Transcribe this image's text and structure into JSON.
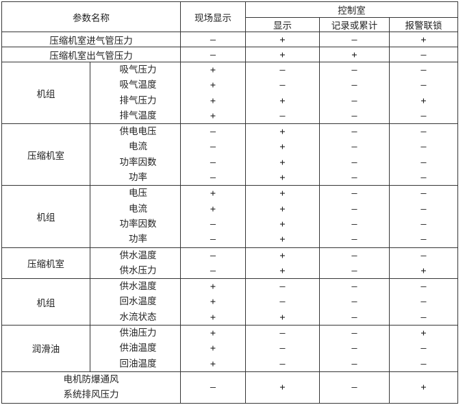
{
  "header": {
    "param_name": "参数名称",
    "field_display": "现场显示",
    "control_room": "控制室",
    "display": "显示",
    "record": "记录或累计",
    "alarm": "报警联锁"
  },
  "rows": [
    {
      "name": "压缩机室进气管压力",
      "values": [
        "—",
        "+",
        "—",
        "+"
      ]
    },
    {
      "name": "压缩机室出气管压力",
      "values": [
        "—",
        "+",
        "+",
        "—"
      ]
    },
    {
      "group": "机组",
      "items": [
        {
          "name": "吸气压力",
          "values": [
            "+",
            "—",
            "—",
            "—"
          ]
        },
        {
          "name": "吸气温度",
          "values": [
            "+",
            "—",
            "—",
            "—"
          ]
        },
        {
          "name": "排气压力",
          "values": [
            "+",
            "+",
            "—",
            "+"
          ]
        },
        {
          "name": "排气温度",
          "values": [
            "+",
            "—",
            "—",
            "—"
          ]
        }
      ]
    },
    {
      "group": "压缩机室",
      "items": [
        {
          "name": "供电电压",
          "values": [
            "—",
            "+",
            "—",
            "—"
          ]
        },
        {
          "name": "电流",
          "values": [
            "—",
            "+",
            "—",
            "—"
          ]
        },
        {
          "name": "功率因数",
          "values": [
            "—",
            "+",
            "—",
            "—"
          ]
        },
        {
          "name": "功率",
          "values": [
            "—",
            "+",
            "—",
            "—"
          ]
        }
      ]
    },
    {
      "group": "机组",
      "items": [
        {
          "name": "电压",
          "values": [
            "+",
            "+",
            "—",
            "—"
          ]
        },
        {
          "name": "电流",
          "values": [
            "+",
            "+",
            "—",
            "—"
          ]
        },
        {
          "name": "功率因数",
          "values": [
            "—",
            "+",
            "—",
            "—"
          ]
        },
        {
          "name": "功率",
          "values": [
            "—",
            "+",
            "—",
            "—"
          ]
        }
      ]
    },
    {
      "group": "压缩机室",
      "items": [
        {
          "name": "供水温度",
          "values": [
            "—",
            "+",
            "—",
            "—"
          ]
        },
        {
          "name": "供水压力",
          "values": [
            "—",
            "+",
            "—",
            "+"
          ]
        }
      ]
    },
    {
      "group": "机组",
      "items": [
        {
          "name": "供水温度",
          "values": [
            "+",
            "—",
            "—",
            "—"
          ]
        },
        {
          "name": "回水温度",
          "values": [
            "+",
            "—",
            "—",
            "—"
          ]
        },
        {
          "name": "水流状态",
          "values": [
            "+",
            "+",
            "—",
            "—"
          ]
        }
      ]
    },
    {
      "group": "润滑油",
      "items": [
        {
          "name": "供油压力",
          "values": [
            "+",
            "—",
            "—",
            "+"
          ]
        },
        {
          "name": "供油温度",
          "values": [
            "+",
            "—",
            "—",
            "—"
          ]
        },
        {
          "name": "回油温度",
          "values": [
            "+",
            "—",
            "—",
            "—"
          ]
        }
      ]
    },
    {
      "name_lines": [
        "电机防爆通风",
        "系统排风压力"
      ],
      "values": [
        "—",
        "+",
        "—",
        "+"
      ]
    }
  ]
}
